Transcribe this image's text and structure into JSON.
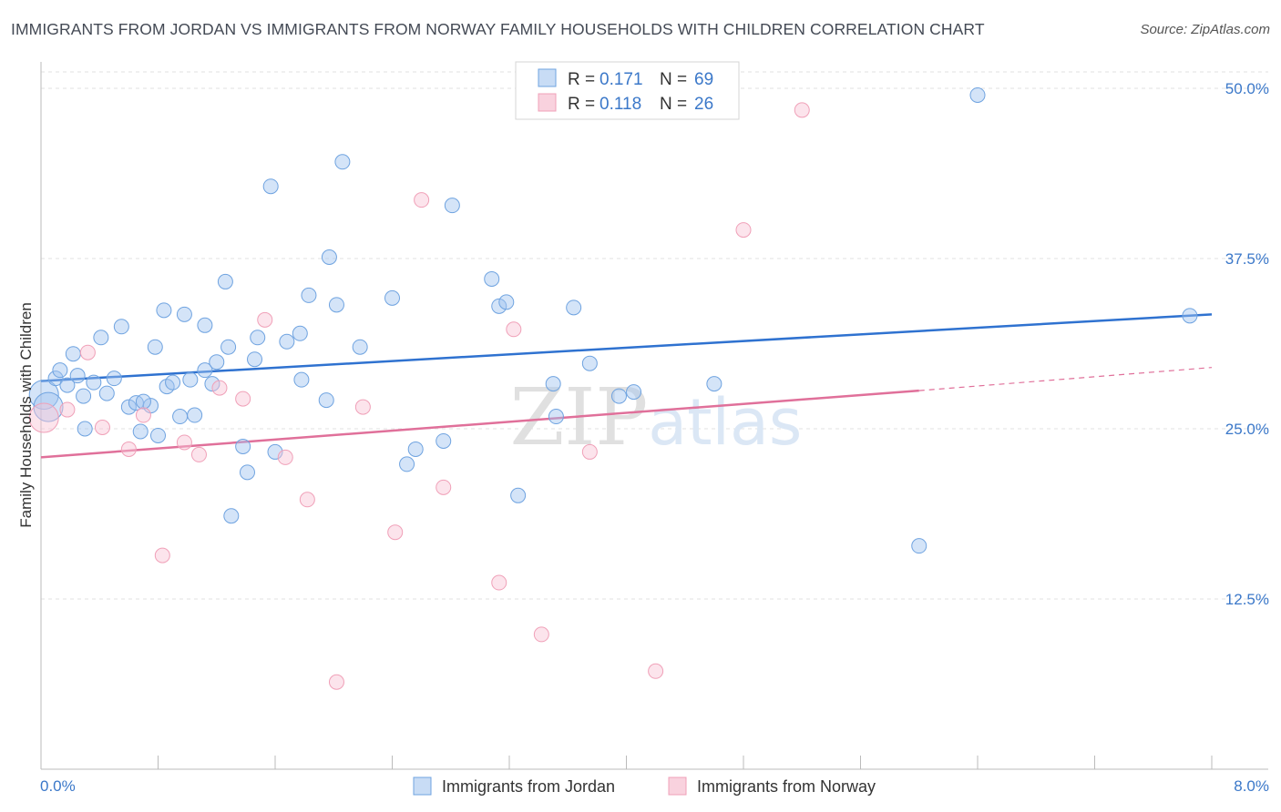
{
  "title": "IMMIGRANTS FROM JORDAN VS IMMIGRANTS FROM NORWAY FAMILY HOUSEHOLDS WITH CHILDREN CORRELATION CHART",
  "source": "Source: ZipAtlas.com",
  "watermark": "ZIPatlas",
  "colors": {
    "jordan": "#6fa3e0",
    "jordan_line": "#2f72d0",
    "norway": "#f0a0b8",
    "norway_line": "#e0709a",
    "tick": "#3b78c9"
  },
  "chart_data": {
    "type": "scatter",
    "ylabel": "Family Households with Children",
    "xlim": [
      0.0,
      8.0
    ],
    "ylim": [
      0.0,
      50.0
    ],
    "x_tick_labels": [
      "0.0%",
      "8.0%"
    ],
    "y_ticks": [
      12.5,
      25.0,
      37.5,
      50.0
    ],
    "y_tick_labels": [
      "12.5%",
      "25.0%",
      "37.5%",
      "50.0%"
    ],
    "grid": true,
    "legend_position": "top-center",
    "legend": [
      {
        "name": "Immigrants from Jordan",
        "r_label": "R =",
        "r": "0.171",
        "n_label": "N =",
        "n": "69"
      },
      {
        "name": "Immigrants from Norway",
        "r_label": "R =",
        "r": "0.118",
        "n_label": "N =",
        "n": "26"
      }
    ],
    "series": [
      {
        "name": "Immigrants from Jordan",
        "trend": {
          "x": [
            0.0,
            8.0
          ],
          "y": [
            28.5,
            33.4
          ]
        },
        "points": [
          [
            0.02,
            27.5
          ],
          [
            0.05,
            26.6
          ],
          [
            0.1,
            28.7
          ],
          [
            0.13,
            29.3
          ],
          [
            0.18,
            28.2
          ],
          [
            0.22,
            30.5
          ],
          [
            0.25,
            28.9
          ],
          [
            0.29,
            27.4
          ],
          [
            0.3,
            25.0
          ],
          [
            0.36,
            28.4
          ],
          [
            0.41,
            31.7
          ],
          [
            0.45,
            27.6
          ],
          [
            0.5,
            28.7
          ],
          [
            0.55,
            32.5
          ],
          [
            0.6,
            26.6
          ],
          [
            0.65,
            26.9
          ],
          [
            0.68,
            24.8
          ],
          [
            0.75,
            26.7
          ],
          [
            0.78,
            31.0
          ],
          [
            0.8,
            24.5
          ],
          [
            0.84,
            33.7
          ],
          [
            0.86,
            28.1
          ],
          [
            0.9,
            28.4
          ],
          [
            0.95,
            25.9
          ],
          [
            0.98,
            33.4
          ],
          [
            1.02,
            28.6
          ],
          [
            1.05,
            26.0
          ],
          [
            1.12,
            29.3
          ],
          [
            1.12,
            32.6
          ],
          [
            1.17,
            28.3
          ],
          [
            1.2,
            29.9
          ],
          [
            1.26,
            35.8
          ],
          [
            1.28,
            31.0
          ],
          [
            1.38,
            23.7
          ],
          [
            1.41,
            21.8
          ],
          [
            1.46,
            30.1
          ],
          [
            1.48,
            31.7
          ],
          [
            1.57,
            42.8
          ],
          [
            1.6,
            23.3
          ],
          [
            1.68,
            31.4
          ],
          [
            1.77,
            32.0
          ],
          [
            1.78,
            28.6
          ],
          [
            1.83,
            34.8
          ],
          [
            1.95,
            27.1
          ],
          [
            1.97,
            37.6
          ],
          [
            2.02,
            34.1
          ],
          [
            2.06,
            44.6
          ],
          [
            2.18,
            31.0
          ],
          [
            2.4,
            34.6
          ],
          [
            2.5,
            22.4
          ],
          [
            2.56,
            23.5
          ],
          [
            2.75,
            24.1
          ],
          [
            2.81,
            41.4
          ],
          [
            3.08,
            36.0
          ],
          [
            3.13,
            34.0
          ],
          [
            3.18,
            34.3
          ],
          [
            3.26,
            20.1
          ],
          [
            3.5,
            28.3
          ],
          [
            3.52,
            25.9
          ],
          [
            3.64,
            33.9
          ],
          [
            3.75,
            29.8
          ],
          [
            3.95,
            27.4
          ],
          [
            4.05,
            27.7
          ],
          [
            4.6,
            28.3
          ],
          [
            6.0,
            16.4
          ],
          [
            6.4,
            49.5
          ],
          [
            7.85,
            33.3
          ],
          [
            1.3,
            18.6
          ],
          [
            0.7,
            27.0
          ]
        ]
      },
      {
        "name": "Immigrants from Norway",
        "trend": {
          "x": [
            0.0,
            6.0
          ],
          "y": [
            22.9,
            27.8
          ]
        },
        "trend_dashed": {
          "x": [
            6.0,
            8.0
          ],
          "y": [
            27.8,
            29.5
          ]
        },
        "points": [
          [
            0.02,
            25.8
          ],
          [
            0.18,
            26.4
          ],
          [
            0.32,
            30.6
          ],
          [
            0.42,
            25.1
          ],
          [
            0.6,
            23.5
          ],
          [
            0.7,
            26.0
          ],
          [
            0.83,
            15.7
          ],
          [
            0.98,
            24.0
          ],
          [
            1.08,
            23.1
          ],
          [
            1.22,
            28.0
          ],
          [
            1.38,
            27.2
          ],
          [
            1.53,
            33.0
          ],
          [
            1.67,
            22.9
          ],
          [
            1.82,
            19.8
          ],
          [
            2.02,
            6.4
          ],
          [
            2.2,
            26.6
          ],
          [
            2.42,
            17.4
          ],
          [
            2.6,
            41.8
          ],
          [
            2.75,
            20.7
          ],
          [
            3.13,
            13.7
          ],
          [
            3.23,
            32.3
          ],
          [
            3.42,
            9.9
          ],
          [
            3.75,
            23.3
          ],
          [
            4.2,
            7.2
          ],
          [
            4.8,
            39.6
          ],
          [
            5.2,
            48.4
          ]
        ]
      }
    ]
  }
}
